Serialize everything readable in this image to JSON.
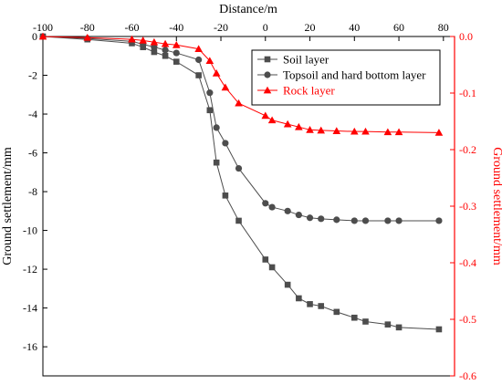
{
  "chart_data": {
    "type": "line",
    "xlabel": "Distance/m",
    "ylabel": "Ground settlement/mm",
    "y2label": "Ground settlement/mm",
    "xlim": [
      -100,
      85
    ],
    "ylim": [
      -17.5,
      0
    ],
    "y2lim": [
      -0.6,
      0
    ],
    "xticks": [
      -100,
      -80,
      -60,
      -40,
      -20,
      0,
      20,
      40,
      60,
      80
    ],
    "yticks": [
      0,
      -2,
      -4,
      -6,
      -8,
      -10,
      -12,
      -14,
      -16
    ],
    "y2ticks": [
      "0.0",
      "-0.1",
      "-0.2",
      "-0.3",
      "-0.4",
      "-0.5",
      "-0.6"
    ],
    "legend_position": "top-right",
    "grid": false,
    "series": [
      {
        "name": "Soil layer",
        "axis": "left",
        "marker": "square",
        "color": "#4d4d4d",
        "x": [
          -100,
          -80,
          -60,
          -55,
          -50,
          -45,
          -40,
          -30,
          -25,
          -22,
          -18,
          -12,
          0,
          3,
          10,
          15,
          20,
          25,
          32,
          40,
          45,
          55,
          60,
          78
        ],
        "y": [
          0,
          -0.15,
          -0.35,
          -0.55,
          -0.8,
          -1.0,
          -1.3,
          -2.0,
          -3.8,
          -6.5,
          -8.2,
          -9.5,
          -11.5,
          -11.9,
          -12.8,
          -13.5,
          -13.8,
          -13.9,
          -14.2,
          -14.5,
          -14.7,
          -14.85,
          -15.0,
          -15.1
        ]
      },
      {
        "name": "Topsoil and hard bottom layer",
        "axis": "left",
        "marker": "circle",
        "color": "#4d4d4d",
        "x": [
          -100,
          -80,
          -60,
          -55,
          -50,
          -45,
          -40,
          -30,
          -25,
          -22,
          -18,
          -12,
          0,
          3,
          10,
          15,
          20,
          25,
          32,
          40,
          45,
          55,
          60,
          78
        ],
        "y": [
          0,
          -0.1,
          -0.25,
          -0.4,
          -0.55,
          -0.7,
          -0.85,
          -1.2,
          -2.9,
          -4.7,
          -5.5,
          -6.8,
          -8.6,
          -8.8,
          -9.0,
          -9.2,
          -9.35,
          -9.4,
          -9.45,
          -9.5,
          -9.5,
          -9.5,
          -9.5,
          -9.5
        ]
      },
      {
        "name": "Rock layer",
        "axis": "right",
        "marker": "triangle",
        "color": "#ff0000",
        "x": [
          -100,
          -80,
          -60,
          -55,
          -50,
          -45,
          -40,
          -30,
          -25,
          -22,
          -18,
          -12,
          0,
          3,
          10,
          15,
          20,
          25,
          32,
          40,
          45,
          55,
          60,
          78
        ],
        "y": [
          0,
          -0.002,
          -0.005,
          -0.007,
          -0.01,
          -0.013,
          -0.015,
          -0.022,
          -0.043,
          -0.065,
          -0.09,
          -0.118,
          -0.14,
          -0.148,
          -0.155,
          -0.16,
          -0.165,
          -0.166,
          -0.167,
          -0.168,
          -0.168,
          -0.169,
          -0.169,
          -0.17
        ]
      }
    ]
  }
}
